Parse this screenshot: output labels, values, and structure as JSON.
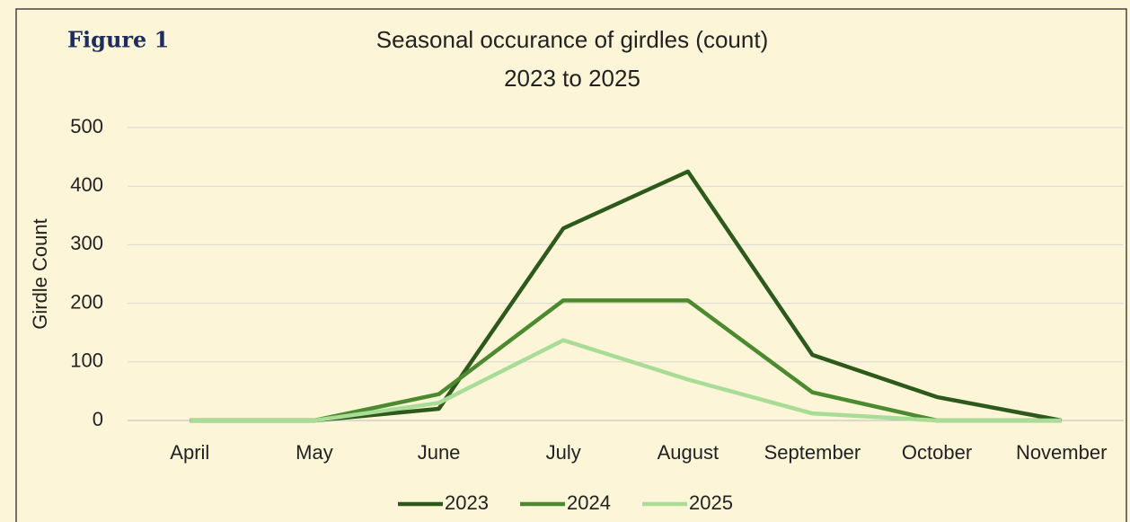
{
  "figure_label": "Figure 1",
  "chart_data": {
    "type": "line",
    "title": [
      "Seasonal occurance of girdles (count)",
      "2023 to 2025"
    ],
    "y_label": "Girdle Count",
    "categories": [
      "April",
      "May",
      "June",
      "July",
      "August",
      "September",
      "October",
      "November"
    ],
    "series": [
      {
        "name": "2023",
        "color": "#2d5a1b",
        "values": [
          0,
          0,
          20,
          328,
          425,
          112,
          40,
          0
        ]
      },
      {
        "name": "2024",
        "color": "#4b8a2e",
        "values": [
          0,
          0,
          45,
          205,
          205,
          48,
          0,
          0
        ]
      },
      {
        "name": "2025",
        "color": "#a9dc96",
        "values": [
          0,
          0,
          30,
          137,
          70,
          12,
          0,
          0
        ]
      }
    ],
    "ylim": [
      0,
      500
    ],
    "yticks": [
      0,
      100,
      200,
      300,
      400,
      500
    ],
    "grid": true,
    "legend": "bottom"
  }
}
